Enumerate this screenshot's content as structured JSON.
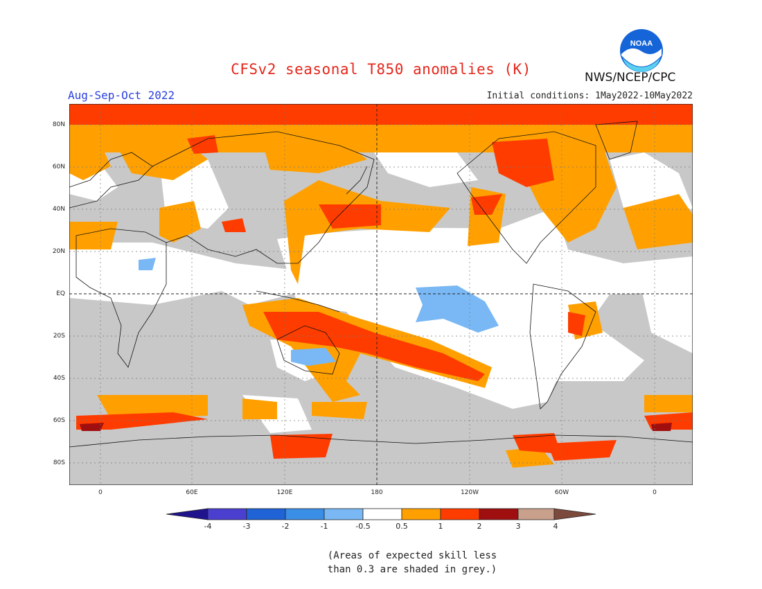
{
  "title": "CFSv2 seasonal T850 anomalies (K)",
  "agency": "NWS/NCEP/CPC",
  "logo_text": "NOAA",
  "season": "Aug-Sep-Oct 2022",
  "initial_conditions": "Initial conditions: 1May2022-10May2022",
  "lat_labels": [
    "80N",
    "60N",
    "40N",
    "20N",
    "EQ",
    "20S",
    "40S",
    "60S",
    "80S"
  ],
  "lon_labels": [
    "0",
    "60E",
    "120E",
    "180",
    "120W",
    "60W",
    "0"
  ],
  "colorbar": {
    "labels": [
      "-4",
      "-3",
      "-2",
      "-1",
      "-0.5",
      "0.5",
      "1",
      "2",
      "3",
      "4"
    ],
    "colors": [
      "#20148c",
      "#4a3fcf",
      "#1f63d6",
      "#3b8ee6",
      "#79b8f4",
      "#ffffff",
      "#ffa000",
      "#ff3c00",
      "#a00f0f",
      "#c8a08c",
      "#7c4a3c"
    ]
  },
  "note_line1": "(Areas of expected skill less",
  "note_line2": "than 0.3 are shaded in grey.)",
  "colors": {
    "grey": "#c8c8c8",
    "white": "#ffffff",
    "light_orange": "#ffa000",
    "orange_red": "#ff3c00",
    "dark_red": "#a00f0f",
    "light_blue": "#79b8f4"
  }
}
